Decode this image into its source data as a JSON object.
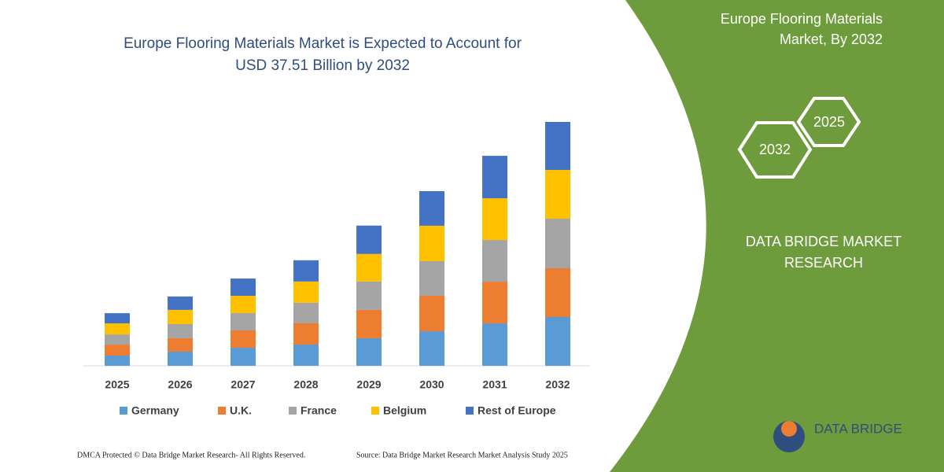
{
  "chart_data": {
    "type": "stacked_bar",
    "title": [
      "Europe Flooring Materials Market is Expected to Account for",
      "USD 37.51 Billion by 2032"
    ],
    "categories": [
      "2025",
      "2026",
      "2027",
      "2028",
      "2029",
      "2030",
      "2031",
      "2032"
    ],
    "series": [
      {
        "name": "Germany",
        "color": "#5b9bd5",
        "values": [
          1.57,
          2.18,
          2.78,
          3.27,
          4.24,
          5.32,
          6.53,
          7.5
        ]
      },
      {
        "name": "U.K.",
        "color": "#ed7d31",
        "values": [
          1.69,
          2.06,
          2.66,
          3.27,
          4.36,
          5.45,
          6.41,
          7.5
        ]
      },
      {
        "name": "France",
        "color": "#a5a5a5",
        "values": [
          1.57,
          2.18,
          2.66,
          3.15,
          4.36,
          5.32,
          6.41,
          7.62
        ]
      },
      {
        "name": "Belgium",
        "color": "#ffc000",
        "values": [
          1.69,
          2.18,
          2.66,
          3.27,
          4.24,
          5.45,
          6.41,
          7.5
        ]
      },
      {
        "name": "Rest of Europe",
        "color": "#4472c4",
        "values": [
          1.57,
          2.06,
          2.66,
          3.27,
          4.36,
          5.32,
          6.53,
          7.38
        ]
      }
    ],
    "ylim": [
      0,
      37.5
    ]
  },
  "panel": {
    "title": [
      "Europe Flooring Materials",
      "Market, By 2032"
    ],
    "hex_back": "2025",
    "hex_front": "2032",
    "company": [
      "DATA BRIDGE MARKET",
      "RESEARCH"
    ],
    "logo": "DATA BRIDGE"
  },
  "footer": {
    "left": "DMCA Protected © Data Bridge Market Research-  All Rights Reserved.",
    "right": "Source: Data Bridge Market Research  Market Analysis Study 2025"
  }
}
